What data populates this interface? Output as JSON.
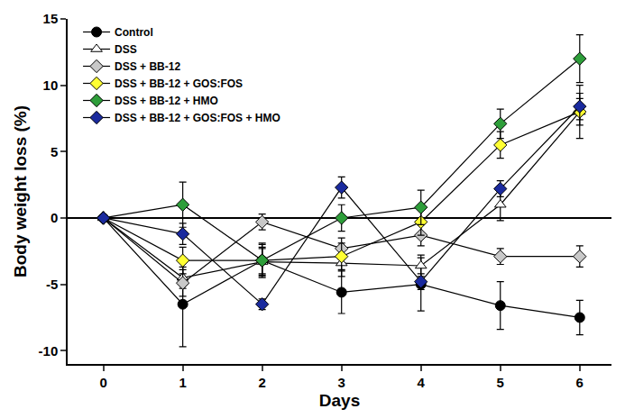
{
  "chart_data": {
    "type": "line",
    "x_label": "Days",
    "y_label": "Body weight loss (%)",
    "x": [
      0,
      1,
      2,
      3,
      4,
      5,
      6
    ],
    "xlim": [
      -0.45,
      6.4
    ],
    "xticks": [
      0,
      1,
      2,
      3,
      4,
      5,
      6
    ],
    "ylim": [
      -11,
      15
    ],
    "yticks": [
      -10,
      -5,
      0,
      5,
      10,
      15
    ],
    "grid": false,
    "legend": "top-left",
    "series": [
      {
        "name": "Control",
        "color": "#000000",
        "marker": "circle",
        "values": [
          0,
          -6.5,
          -3.2,
          -5.6,
          -5.0,
          -6.6,
          -7.5
        ],
        "errors": [
          0,
          3.2,
          1.3,
          1.6,
          2.0,
          1.8,
          1.3
        ]
      },
      {
        "name": "DSS",
        "color": "#ffffff",
        "marker": "triangle-up",
        "values": [
          0,
          -4.5,
          -3.3,
          -3.4,
          -3.6,
          1.0,
          8.0
        ],
        "errors": [
          0,
          0.8,
          1.0,
          1.0,
          0.8,
          1.2,
          1.0
        ]
      },
      {
        "name": "DSS + BB-12",
        "color": "#c8c8c8",
        "marker": "diamond",
        "values": [
          0,
          -4.9,
          -0.3,
          -2.3,
          -1.3,
          -2.9,
          -2.9
        ],
        "errors": [
          0,
          1.0,
          0.6,
          0.8,
          0.8,
          0.6,
          0.8
        ]
      },
      {
        "name": "DSS + BB-12 + GOS:FOS",
        "color": "#ffff33",
        "marker": "diamond",
        "values": [
          0,
          -3.2,
          -3.2,
          -2.9,
          -0.3,
          5.5,
          8.0
        ],
        "errors": [
          0,
          1.0,
          1.2,
          1.0,
          1.0,
          1.0,
          2.0
        ]
      },
      {
        "name": "DSS + BB-12 + HMO",
        "color": "#2e9e3a",
        "marker": "diamond",
        "values": [
          0,
          1.0,
          -3.2,
          0.0,
          0.8,
          7.1,
          12.0
        ],
        "errors": [
          0,
          1.7,
          1.0,
          1.0,
          1.3,
          1.1,
          1.8
        ]
      },
      {
        "name": "DSS + BB-12 + GOS:FOS + HMO",
        "color": "#1a2a9e",
        "marker": "diamond",
        "values": [
          0,
          -1.2,
          -6.5,
          2.3,
          -4.8,
          2.2,
          8.4
        ],
        "errors": [
          0,
          0.8,
          0.4,
          0.8,
          0.6,
          0.6,
          1.0
        ]
      }
    ]
  }
}
